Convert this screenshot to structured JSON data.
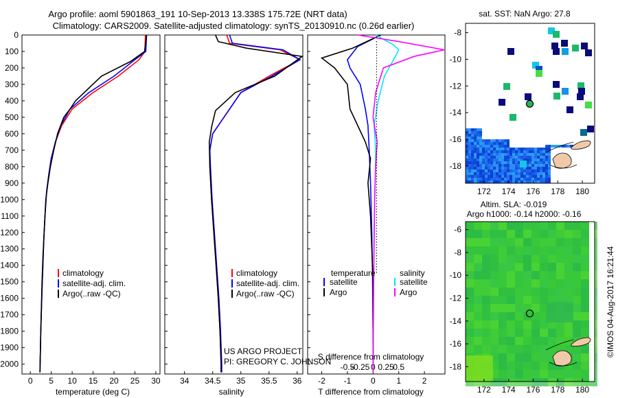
{
  "header": {
    "line1": "Argo profile: aoml 5901863_191 10-Sep-2013 13.338S 175.72E (NRT data)",
    "line2": "Climatology: CARS2009. Satellite-adjusted climatology: synTS_20130910.nc (0.26d earlier)"
  },
  "sst_title": "sat. SST: NaN Argo: 27.8",
  "sla_title1": "Altim. SLA: -0.019",
  "sla_title2": "Argo h1000: -0.14 h2000: -0.16",
  "credit": "©IMOS 04-Aug-2017 16:21:44",
  "project": {
    "line1": "US ARGO PROJECT",
    "line2": "PI: GREGORY C. JOHNSON"
  },
  "colors": {
    "climatology": "#ff0000",
    "satellite": "#0000ff",
    "argo": "#000000",
    "sat_s": "#00e5ff",
    "argo_s": "#ff00ff"
  },
  "depth_axis": {
    "ticks": [
      "0",
      "100",
      "200",
      "300",
      "400",
      "500",
      "600",
      "700",
      "800",
      "900",
      "1000",
      "1100",
      "1200",
      "1300",
      "1400",
      "1500",
      "1600",
      "1700",
      "1800",
      "1900",
      "2000"
    ]
  },
  "legend_left": [
    "climatology",
    "satellite-adj. clim.",
    "Argo(..raw -QC)"
  ],
  "legend_diff": {
    "temperature": "temperature",
    "salinity": "salinity",
    "satellite": "satellite",
    "argo": "Argo"
  },
  "chart_data": [
    {
      "type": "line",
      "xlabel": "temperature (deg C)",
      "xticks": [
        "0",
        "5",
        "10",
        "15",
        "20",
        "25",
        "30"
      ],
      "xlim": [
        -2,
        31
      ],
      "ylim": [
        2060,
        0
      ],
      "series": [
        {
          "name": "climatology",
          "x": [
            27.5,
            27.4,
            26.0,
            21.0,
            15.0,
            10.0,
            7.5,
            6.0,
            5.0,
            4.4,
            3.9,
            3.5,
            3.2,
            3.0,
            2.8,
            2.5,
            2.3
          ],
          "y": [
            0,
            100,
            150,
            250,
            350,
            450,
            550,
            650,
            750,
            850,
            950,
            1100,
            1250,
            1400,
            1550,
            1800,
            2050
          ]
        },
        {
          "name": "satellite-adj. clim.",
          "x": [
            27.8,
            27.6,
            25.0,
            20.0,
            14.0,
            9.5,
            7.3,
            6.0,
            5.0,
            4.4,
            3.9,
            3.5,
            3.2,
            3.0,
            2.8,
            2.5,
            2.3
          ],
          "y": [
            0,
            100,
            150,
            250,
            350,
            450,
            550,
            650,
            750,
            850,
            950,
            1100,
            1250,
            1400,
            1550,
            1800,
            2050
          ]
        },
        {
          "name": "Argo(..raw -QC)",
          "x": [
            27.8,
            27.3,
            24.0,
            17.0,
            10.8,
            9.5,
            8.0,
            6.5,
            5.6,
            4.8,
            4.2,
            3.7,
            3.3,
            3.0,
            2.8,
            2.5,
            2.3
          ],
          "y": [
            0,
            100,
            160,
            250,
            400,
            450,
            500,
            600,
            700,
            800,
            900,
            1000,
            1200,
            1350,
            1500,
            1800,
            2050
          ]
        }
      ]
    },
    {
      "type": "line",
      "xlabel": "salinity",
      "xticks": [
        "34",
        "34.5",
        "35",
        "35.5",
        "36"
      ],
      "xlim": [
        33.65,
        36.1
      ],
      "ylim": [
        2060,
        0
      ],
      "series": [
        {
          "name": "climatology",
          "x": [
            34.75,
            34.8,
            35.7,
            36.05,
            35.5,
            35.0,
            34.7,
            34.5,
            34.45,
            34.45,
            34.48,
            34.52,
            34.56,
            34.6,
            34.63,
            34.65,
            34.65
          ],
          "y": [
            0,
            50,
            90,
            150,
            250,
            350,
            500,
            600,
            700,
            800,
            1000,
            1200,
            1400,
            1600,
            1800,
            2000,
            2050
          ]
        },
        {
          "name": "satellite-adj. clim.",
          "x": [
            34.8,
            34.85,
            35.75,
            36.05,
            35.55,
            35.0,
            34.7,
            34.5,
            34.45,
            34.46,
            34.49,
            34.53,
            34.57,
            34.61,
            34.64,
            34.66,
            34.66
          ],
          "y": [
            0,
            50,
            90,
            150,
            250,
            350,
            500,
            600,
            700,
            800,
            1000,
            1200,
            1400,
            1600,
            1800,
            2000,
            2050
          ]
        },
        {
          "name": "Argo(..raw -QC)",
          "x": [
            34.55,
            34.6,
            35.1,
            36.1,
            35.6,
            34.9,
            34.55,
            34.48,
            34.44,
            34.45,
            34.48,
            34.52,
            34.56,
            34.6,
            34.63,
            34.65,
            34.65
          ],
          "y": [
            0,
            40,
            80,
            130,
            250,
            350,
            460,
            560,
            650,
            800,
            1000,
            1200,
            1400,
            1600,
            1800,
            2000,
            2050
          ]
        }
      ]
    },
    {
      "type": "line",
      "xlabel": "T difference from climatology",
      "x2label": "S difference from climatology",
      "xticks": [
        "-2",
        "-1",
        "0",
        "1",
        "2"
      ],
      "x2ticks": [
        "-0.5",
        "-0.25",
        "0",
        "0.25",
        "0.5"
      ],
      "xlim": [
        -2.55,
        2.8
      ],
      "ylim": [
        2060,
        0
      ],
      "series": [
        {
          "name": "temperature satellite",
          "x": [
            0.3,
            -0.6,
            -1.0,
            -0.9,
            -0.5,
            -0.3,
            -0.2,
            -0.15,
            -0.1,
            -0.05,
            -0.02,
            0.0,
            0.0
          ],
          "y": [
            0,
            70,
            150,
            200,
            300,
            450,
            550,
            700,
            900,
            1200,
            1500,
            1800,
            2050
          ]
        },
        {
          "name": "temperature Argo",
          "x": [
            0.3,
            -0.8,
            -2.0,
            -1.5,
            -1.0,
            -0.9,
            -0.6,
            -0.3,
            -0.1,
            -0.2,
            -0.1,
            0.0,
            0.0
          ],
          "y": [
            0,
            80,
            140,
            200,
            300,
            450,
            550,
            650,
            750,
            900,
            1100,
            1500,
            2050
          ]
        },
        {
          "name": "salinity satellite",
          "x": [
            0.05,
            0.4,
            0.5,
            0.4,
            0.22,
            0.1,
            0.02,
            0.05,
            0.04,
            0.02,
            0.01,
            0.0
          ],
          "y": [
            0,
            60,
            90,
            150,
            250,
            400,
            550,
            700,
            900,
            1200,
            1600,
            2050
          ]
        },
        {
          "name": "salinity Argo",
          "x": [
            -0.3,
            0.5,
            2.8,
            0.8,
            0.2,
            0.05,
            0.0,
            0.08,
            0.05,
            0.03,
            0.01,
            0.0
          ],
          "y": [
            0,
            40,
            90,
            130,
            200,
            350,
            500,
            650,
            800,
            1000,
            1500,
            2050
          ]
        }
      ]
    }
  ],
  "maps": {
    "sst": {
      "xticks": [
        "172",
        "174",
        "176",
        "178",
        "180"
      ],
      "yticks": [
        "-8",
        "-10",
        "-12",
        "-14",
        "-16",
        "-18"
      ],
      "xlim": [
        170.5,
        181
      ],
      "ylim": [
        -7.3,
        -19.3
      ],
      "argo_position": [
        175.72,
        -13.34
      ]
    },
    "sla": {
      "xticks": [
        "172",
        "174",
        "176",
        "178",
        "180"
      ],
      "yticks": [
        "-6",
        "-8",
        "-10",
        "-12",
        "-14",
        "-16",
        "-18"
      ],
      "xlim": [
        170.5,
        181
      ],
      "ylim": [
        -5.3,
        -19.3
      ],
      "argo_position": [
        175.72,
        -13.34
      ]
    }
  }
}
